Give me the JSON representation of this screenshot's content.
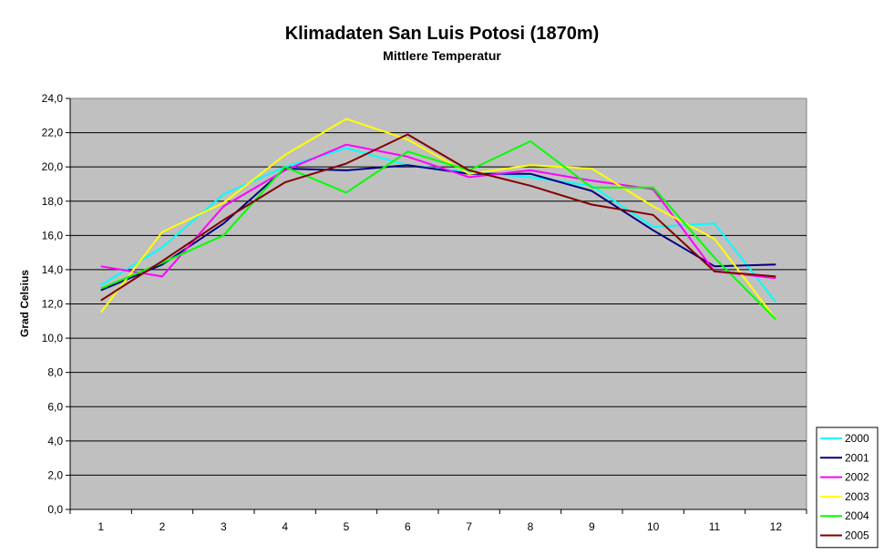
{
  "chart_data": {
    "type": "line",
    "title": "Klimadaten San Luis Potosi (1870m)",
    "subtitle": "Mittlere Temperatur",
    "xlabel": "",
    "ylabel": "Grad Celsius",
    "x": [
      "1",
      "2",
      "3",
      "4",
      "5",
      "6",
      "7",
      "8",
      "9",
      "10",
      "11",
      "12"
    ],
    "ylim": [
      0,
      24
    ],
    "ytick_step": 2,
    "ytick_labels": [
      "0,0",
      "2,0",
      "4,0",
      "6,0",
      "8,0",
      "10,0",
      "12,0",
      "14,0",
      "16,0",
      "18,0",
      "20,0",
      "22,0",
      "24,0"
    ],
    "grid": true,
    "plot_background": "#c0c0c0",
    "legend_position": "bottom-right",
    "series": [
      {
        "name": "2000",
        "color": "#00ffff",
        "values": [
          13.1,
          15.3,
          18.4,
          20.0,
          21.1,
          20.1,
          19.7,
          19.4,
          18.9,
          16.5,
          16.7,
          12.1
        ]
      },
      {
        "name": "2001",
        "color": "#000080",
        "values": [
          12.8,
          14.3,
          16.7,
          19.9,
          19.8,
          20.1,
          19.6,
          19.6,
          18.6,
          16.3,
          14.2,
          14.3
        ]
      },
      {
        "name": "2002",
        "color": "#ff00ff",
        "values": [
          14.2,
          13.6,
          17.7,
          19.8,
          21.3,
          20.6,
          19.4,
          19.8,
          19.2,
          18.7,
          13.9,
          13.5
        ]
      },
      {
        "name": "2003",
        "color": "#ffff00",
        "values": [
          11.5,
          16.2,
          17.9,
          20.7,
          22.8,
          21.6,
          19.6,
          20.1,
          19.9,
          17.7,
          15.8,
          11.1
        ]
      },
      {
        "name": "2004",
        "color": "#00ff00",
        "values": [
          12.9,
          14.4,
          16.0,
          20.0,
          18.5,
          20.9,
          19.8,
          21.5,
          18.8,
          18.8,
          14.7,
          11.1
        ]
      },
      {
        "name": "2005",
        "color": "#800000",
        "values": [
          12.2,
          14.5,
          16.9,
          19.1,
          20.2,
          21.9,
          19.8,
          18.9,
          17.8,
          17.2,
          13.9,
          13.6
        ]
      }
    ]
  }
}
